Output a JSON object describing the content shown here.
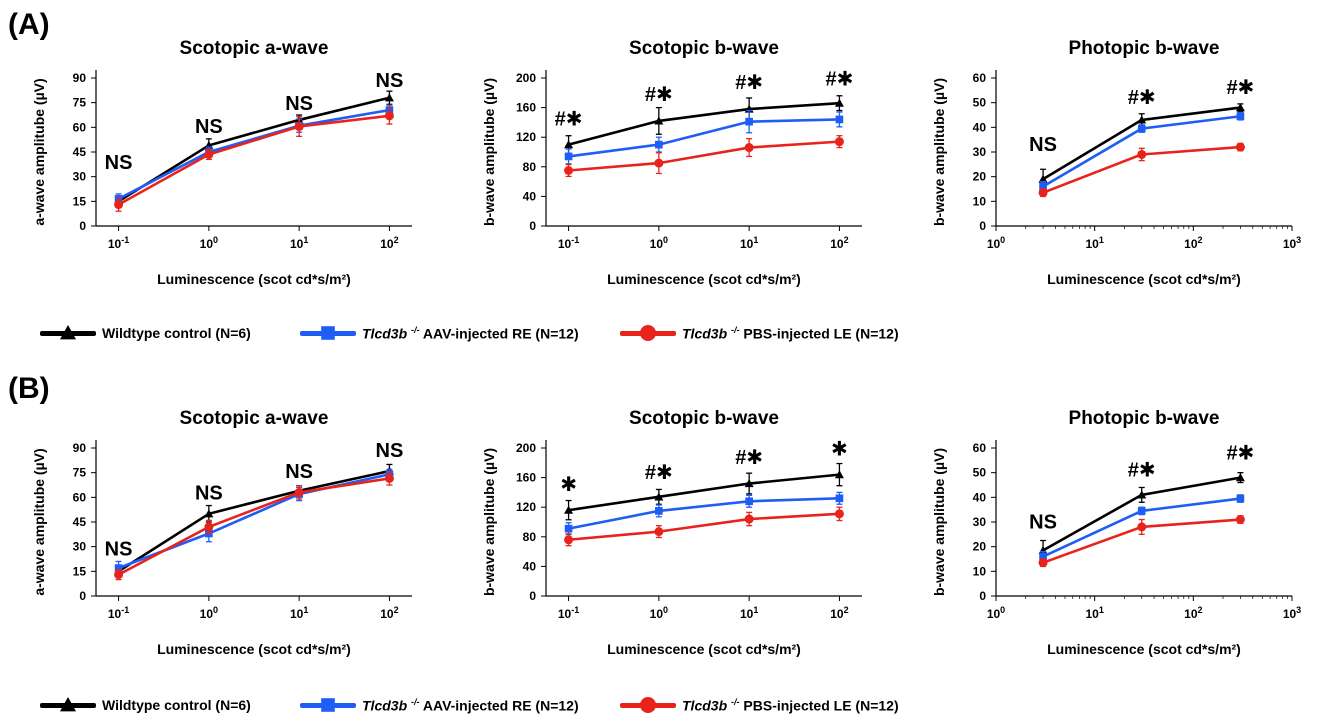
{
  "panels": [
    {
      "label": "(A)",
      "legend": [
        {
          "name_main": "Wildtype control (N=6)",
          "gene": "",
          "sup": "",
          "color": "#000000",
          "marker": "triangle"
        },
        {
          "name_main": " AAV-injected RE (N=12)",
          "gene": "Tlcd3b",
          "sup": "-/-",
          "color": "#1f5ef5",
          "marker": "square"
        },
        {
          "name_main": " PBS-injected LE (N=12)",
          "gene": "Tlcd3b",
          "sup": "-/-",
          "color": "#e8231c",
          "marker": "circle"
        }
      ],
      "charts": [
        {
          "type": "line",
          "title": "Scotopic a-wave",
          "ylabel": "a-wave amplitube (µV)",
          "xlabel": "Luminescence (scot cd*s/m²)",
          "xlog": [
            -1,
            2
          ],
          "ylim": [
            0,
            90
          ],
          "yticks": [
            0,
            15,
            30,
            45,
            60,
            75,
            90
          ],
          "xtick_labels": [
            "10-1",
            "100",
            "101",
            "102"
          ],
          "x": [
            -1,
            0,
            1,
            2
          ],
          "series": [
            {
              "values": [
                15,
                49,
                64.5,
                78
              ],
              "err": [
                3,
                4,
                3,
                4
              ],
              "color": "#000000",
              "marker": "triangle"
            },
            {
              "values": [
                16.5,
                45,
                61,
                70.5
              ],
              "err": [
                3,
                3,
                4,
                3
              ],
              "color": "#1f5ef5",
              "marker": "square"
            },
            {
              "values": [
                13,
                43.5,
                60.5,
                67
              ],
              "err": [
                4,
                3,
                6,
                5
              ],
              "color": "#e8231c",
              "marker": "circle"
            }
          ],
          "annotations": [
            {
              "text": "NS",
              "x": -1,
              "y": 31
            },
            {
              "text": "NS",
              "x": 0,
              "y": 53
            },
            {
              "text": "NS",
              "x": 1,
              "y": 67
            },
            {
              "text": "NS",
              "x": 2,
              "y": 81
            }
          ]
        },
        {
          "type": "line",
          "title": "Scotopic b-wave",
          "ylabel": "b-wave amplitube (µV)",
          "xlabel": "Luminescence (scot cd*s/m²)",
          "xlog": [
            -1,
            2
          ],
          "ylim": [
            0,
            200
          ],
          "yticks": [
            0,
            40,
            80,
            120,
            160,
            200
          ],
          "xtick_labels": [
            "10-1",
            "100",
            "101",
            "102"
          ],
          "x": [
            -1,
            0,
            1,
            2
          ],
          "series": [
            {
              "values": [
                110,
                142,
                158,
                166
              ],
              "err": [
                12,
                18,
                15,
                10
              ],
              "color": "#000000",
              "marker": "triangle"
            },
            {
              "values": [
                94,
                110,
                141,
                144
              ],
              "err": [
                10,
                10,
                15,
                10
              ],
              "color": "#1f5ef5",
              "marker": "square"
            },
            {
              "values": [
                75,
                85,
                106,
                114
              ],
              "err": [
                8,
                14,
                12,
                8
              ],
              "color": "#e8231c",
              "marker": "circle"
            }
          ],
          "annotations": [
            {
              "text": "#✱",
              "x": -1,
              "y": 128
            },
            {
              "text": "#✱",
              "x": 0,
              "y": 161
            },
            {
              "text": "#✱",
              "x": 1,
              "y": 177
            },
            {
              "text": "#✱",
              "x": 2,
              "y": 182
            }
          ]
        },
        {
          "type": "line",
          "title": "Photopic b-wave",
          "ylabel": "b-wave amplitube (µV)",
          "xlabel": "Luminescence (scot cd*s/m²)",
          "xlog": [
            0,
            3
          ],
          "ylim": [
            0,
            60
          ],
          "yticks": [
            0,
            10,
            20,
            30,
            40,
            50,
            60
          ],
          "xtick_labels": [
            "100",
            "101",
            "102",
            "103"
          ],
          "x": [
            0.477,
            1.477,
            2.477
          ],
          "series": [
            {
              "values": [
                19,
                43,
                48
              ],
              "err": [
                4,
                2.5,
                1.5
              ],
              "color": "#000000",
              "marker": "triangle"
            },
            {
              "values": [
                16,
                39.5,
                44.5
              ],
              "err": [
                2,
                1.5,
                1.5
              ],
              "color": "#1f5ef5",
              "marker": "square"
            },
            {
              "values": [
                13.5,
                29,
                32
              ],
              "err": [
                1.5,
                2.5,
                1.5
              ],
              "color": "#e8231c",
              "marker": "circle"
            }
          ],
          "annotations": [
            {
              "text": "NS",
              "x": 0.477,
              "y": 28
            },
            {
              "text": "#✱",
              "x": 1.477,
              "y": 47
            },
            {
              "text": "#✱",
              "x": 2.477,
              "y": 51
            }
          ]
        }
      ]
    },
    {
      "label": "(B)",
      "legend": [
        {
          "name_main": "Wildtype control (N=6)",
          "gene": "",
          "sup": "",
          "color": "#000000",
          "marker": "triangle"
        },
        {
          "name_main": " AAV-injected RE (N=12)",
          "gene": "Tlcd3b",
          "sup": "-/-",
          "color": "#1f5ef5",
          "marker": "square"
        },
        {
          "name_main": " PBS-injected LE (N=12)",
          "gene": "Tlcd3b",
          "sup": "-/-",
          "color": "#e8231c",
          "marker": "circle"
        }
      ],
      "charts": [
        {
          "type": "line",
          "title": "Scotopic a-wave",
          "ylabel": "a-wave amplitube (µV)",
          "xlabel": "Luminescence (scot cd*s/m²)",
          "xlog": [
            -1,
            2
          ],
          "ylim": [
            0,
            90
          ],
          "yticks": [
            0,
            15,
            30,
            45,
            60,
            75,
            90
          ],
          "xtick_labels": [
            "10-1",
            "100",
            "101",
            "102"
          ],
          "x": [
            -1,
            0,
            1,
            2
          ],
          "series": [
            {
              "values": [
                15,
                50,
                64,
                76
              ],
              "err": [
                3,
                5,
                3,
                4
              ],
              "color": "#000000",
              "marker": "triangle"
            },
            {
              "values": [
                17,
                38,
                62,
                74
              ],
              "err": [
                4,
                5,
                4,
                3
              ],
              "color": "#1f5ef5",
              "marker": "square"
            },
            {
              "values": [
                13,
                42,
                63,
                71.5
              ],
              "err": [
                3,
                4,
                4,
                4
              ],
              "color": "#e8231c",
              "marker": "circle"
            }
          ],
          "annotations": [
            {
              "text": "NS",
              "x": -1,
              "y": 21
            },
            {
              "text": "NS",
              "x": 0,
              "y": 55
            },
            {
              "text": "NS",
              "x": 1,
              "y": 68
            },
            {
              "text": "NS",
              "x": 2,
              "y": 81
            }
          ]
        },
        {
          "type": "line",
          "title": "Scotopic b-wave",
          "ylabel": "b-wave amplitube (µV)",
          "xlabel": "Luminescence (scot cd*s/m²)",
          "xlog": [
            -1,
            2
          ],
          "ylim": [
            0,
            200
          ],
          "yticks": [
            0,
            40,
            80,
            120,
            160,
            200
          ],
          "xtick_labels": [
            "10-1",
            "100",
            "101",
            "102"
          ],
          "x": [
            -1,
            0,
            1,
            2
          ],
          "series": [
            {
              "values": [
                116,
                134,
                152,
                164
              ],
              "err": [
                13,
                10,
                14,
                15
              ],
              "color": "#000000",
              "marker": "triangle"
            },
            {
              "values": [
                91,
                115,
                128,
                132
              ],
              "err": [
                8,
                8,
                8,
                8
              ],
              "color": "#1f5ef5",
              "marker": "square"
            },
            {
              "values": [
                76,
                87,
                104,
                111
              ],
              "err": [
                8,
                8,
                9,
                9
              ],
              "color": "#e8231c",
              "marker": "circle"
            }
          ],
          "annotations": [
            {
              "text": "✱",
              "x": -1,
              "y": 134
            },
            {
              "text": "#✱",
              "x": 0,
              "y": 150
            },
            {
              "text": "#✱",
              "x": 1,
              "y": 170
            },
            {
              "text": "✱",
              "x": 2,
              "y": 182
            }
          ]
        },
        {
          "type": "line",
          "title": "Photopic b-wave",
          "ylabel": "b-wave amplitube (µV)",
          "xlabel": "Luminescence (scot cd*s/m²)",
          "xlog": [
            0,
            3
          ],
          "ylim": [
            0,
            60
          ],
          "yticks": [
            0,
            10,
            20,
            30,
            40,
            50,
            60
          ],
          "xtick_labels": [
            "100",
            "101",
            "102",
            "103"
          ],
          "x": [
            0.477,
            1.477,
            2.477
          ],
          "series": [
            {
              "values": [
                18.5,
                41,
                48
              ],
              "err": [
                4,
                3,
                2
              ],
              "color": "#000000",
              "marker": "triangle"
            },
            {
              "values": [
                16,
                34.5,
                39.5
              ],
              "err": [
                2,
                1.5,
                1.5
              ],
              "color": "#1f5ef5",
              "marker": "square"
            },
            {
              "values": [
                13.5,
                28,
                31
              ],
              "err": [
                1.5,
                3,
                1.5
              ],
              "color": "#e8231c",
              "marker": "circle"
            }
          ],
          "annotations": [
            {
              "text": "NS",
              "x": 0.477,
              "y": 25
            },
            {
              "text": "#✱",
              "x": 1.477,
              "y": 46
            },
            {
              "text": "#✱",
              "x": 2.477,
              "y": 53
            }
          ]
        }
      ]
    }
  ]
}
